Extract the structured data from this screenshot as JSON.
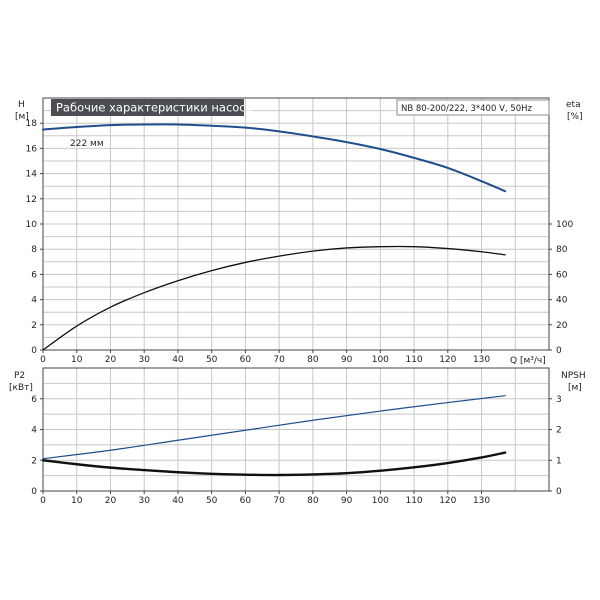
{
  "chart_data": [
    {
      "type": "line",
      "title": "Рабочие характеристики насоса",
      "model_label": "NB 80-200/222, 3*400 V, 50Hz",
      "y_left": {
        "name": "H",
        "unit": "[м]",
        "range": [
          0,
          20
        ],
        "ticks": [
          0,
          2,
          4,
          6,
          8,
          10,
          12,
          14,
          16,
          18
        ]
      },
      "y_right": {
        "name": "eta",
        "unit": "[%]",
        "range": [
          0,
          200
        ],
        "ticks": [
          0,
          20,
          40,
          60,
          80,
          100
        ]
      },
      "x": {
        "label": "Q [м³/ч]",
        "range": [
          0,
          150
        ],
        "ticks": [
          0,
          10,
          20,
          30,
          40,
          50,
          60,
          70,
          80,
          90,
          100,
          110,
          120,
          130
        ]
      },
      "grid": true,
      "series": [
        {
          "name": "222 мм",
          "axis": "left",
          "color": "#1f4e8c",
          "x": [
            0,
            10,
            20,
            30,
            40,
            50,
            60,
            70,
            80,
            90,
            100,
            110,
            120,
            130,
            137
          ],
          "y": [
            17.5,
            17.7,
            17.85,
            17.9,
            17.9,
            17.8,
            17.65,
            17.35,
            16.95,
            16.5,
            15.95,
            15.25,
            14.45,
            13.4,
            12.6
          ]
        },
        {
          "axis": "right",
          "color": "#111111",
          "x": [
            0,
            10,
            20,
            30,
            40,
            50,
            60,
            70,
            80,
            90,
            100,
            110,
            120,
            130,
            137
          ],
          "y": [
            0,
            19,
            34,
            45.5,
            55,
            63,
            69.5,
            74.5,
            78.5,
            81,
            82,
            82,
            80.5,
            78,
            75.5
          ]
        }
      ]
    },
    {
      "type": "line",
      "y_left": {
        "name": "P2",
        "unit": "[кВт]",
        "range": [
          0,
          8
        ],
        "ticks": [
          0,
          2,
          4,
          6
        ]
      },
      "y_right": {
        "name": "NPSH",
        "unit": "[м]",
        "range": [
          0,
          4
        ],
        "ticks": [
          0,
          1,
          2,
          3
        ]
      },
      "x": {
        "range": [
          0,
          150
        ],
        "ticks": [
          0,
          10,
          20,
          30,
          40,
          50,
          60,
          70,
          80,
          90,
          100,
          110,
          120,
          130
        ]
      },
      "grid": true,
      "series": [
        {
          "axis": "left",
          "color": "#1f4e8c",
          "x": [
            0,
            20,
            40,
            60,
            80,
            100,
            120,
            137
          ],
          "y": [
            2.1,
            2.65,
            3.3,
            3.95,
            4.6,
            5.2,
            5.75,
            6.2
          ]
        },
        {
          "axis": "right",
          "color": "#111111",
          "x": [
            0,
            10,
            20,
            30,
            40,
            50,
            60,
            70,
            80,
            90,
            100,
            110,
            120,
            130,
            137
          ],
          "y": [
            1.0,
            0.87,
            0.76,
            0.68,
            0.61,
            0.56,
            0.53,
            0.52,
            0.54,
            0.58,
            0.66,
            0.77,
            0.91,
            1.09,
            1.25
          ]
        }
      ]
    }
  ]
}
